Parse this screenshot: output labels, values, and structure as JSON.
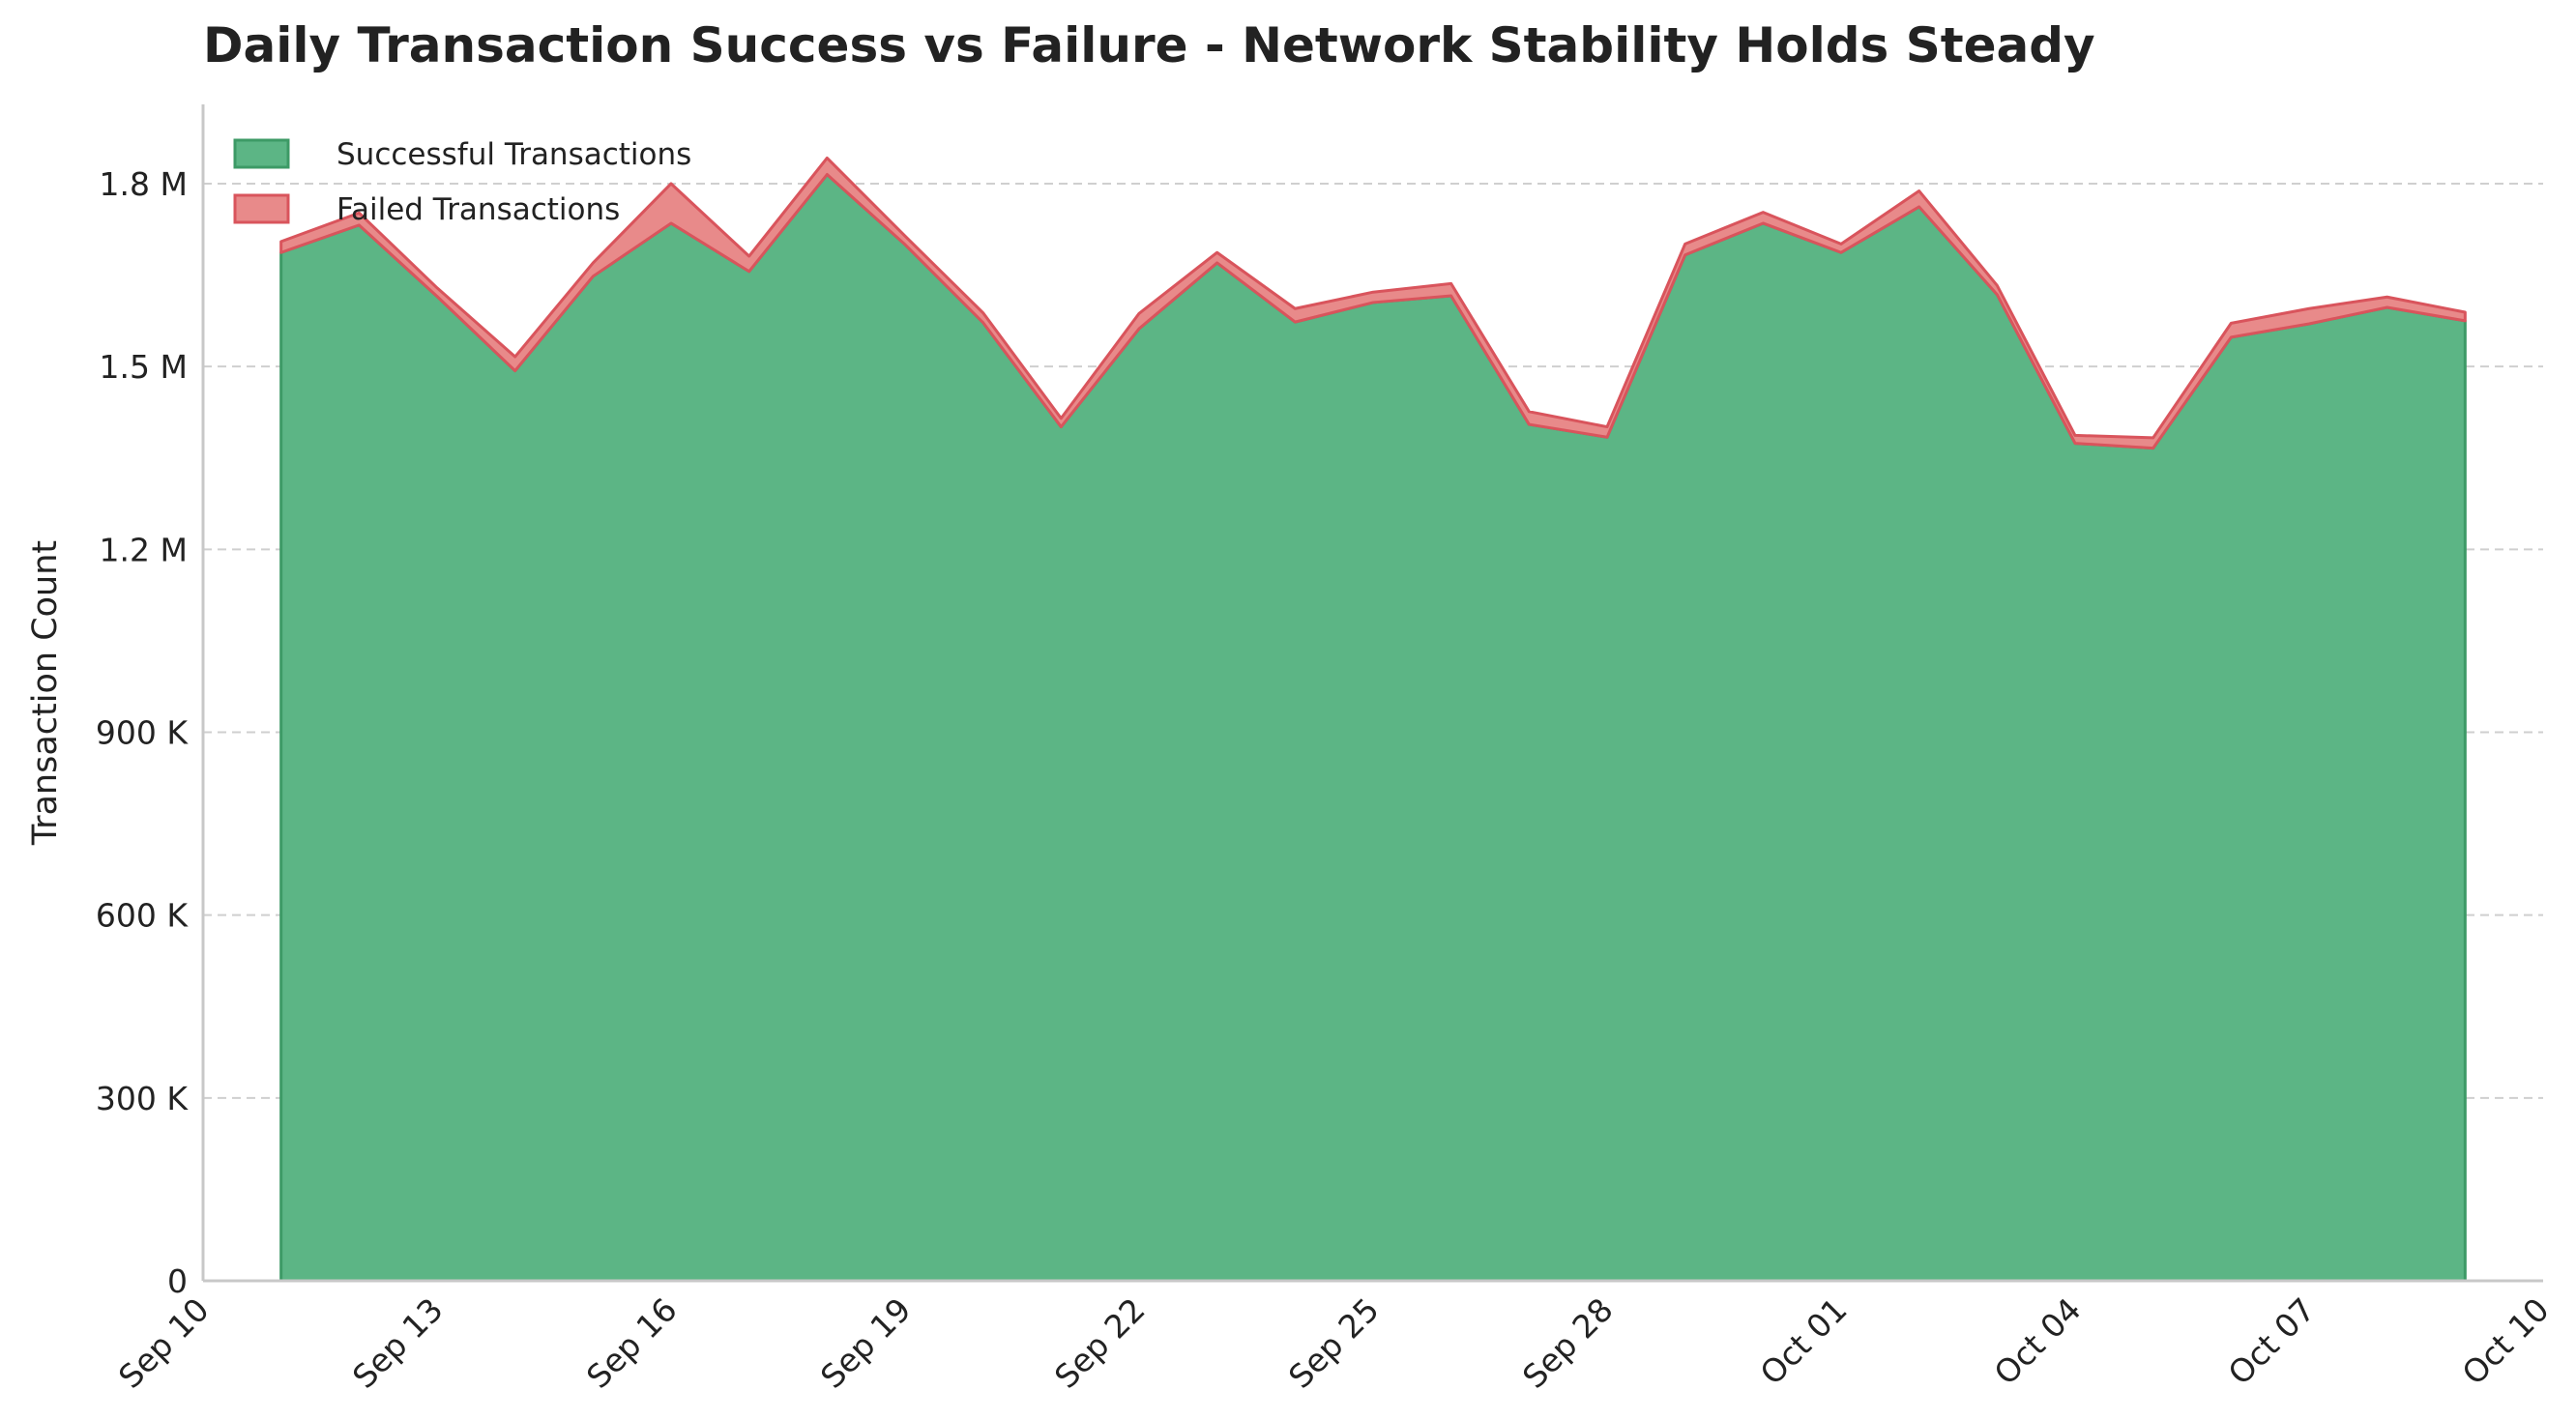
{
  "chart_data": {
    "type": "area",
    "stacked": true,
    "title": "Daily Transaction Success vs Failure - Network Stability Holds Steady",
    "xlabel": "",
    "ylabel": "Transaction Count",
    "x": [
      "2024-09-11",
      "2024-09-12",
      "2024-09-13",
      "2024-09-14",
      "2024-09-15",
      "2024-09-16",
      "2024-09-17",
      "2024-09-18",
      "2024-09-19",
      "2024-09-20",
      "2024-09-21",
      "2024-09-22",
      "2024-09-23",
      "2024-09-24",
      "2024-09-25",
      "2024-09-26",
      "2024-09-27",
      "2024-09-28",
      "2024-09-29",
      "2024-09-30",
      "2024-10-01",
      "2024-10-02",
      "2024-10-03",
      "2024-10-04",
      "2024-10-05",
      "2024-10-06",
      "2024-10-07",
      "2024-10-08",
      "2024-10-09"
    ],
    "series": [
      {
        "name": "Successful Transactions",
        "color": "#5cb585",
        "edge": "#3d9a66",
        "values": [
          1687000,
          1732000,
          1615000,
          1493000,
          1648000,
          1735000,
          1656000,
          1815000,
          1700000,
          1572000,
          1401000,
          1562000,
          1670000,
          1573000,
          1605000,
          1616000,
          1405000,
          1384000,
          1683000,
          1735000,
          1687000,
          1762000,
          1618000,
          1374000,
          1366000,
          1548000,
          1570000,
          1597000,
          1575000
        ]
      },
      {
        "name": "Failed Transactions",
        "color": "#e88a8a",
        "edge": "#d9545c",
        "values": [
          18000,
          20000,
          14000,
          23000,
          22000,
          65000,
          25000,
          27000,
          14000,
          16000,
          14000,
          25000,
          17000,
          22000,
          17000,
          20000,
          21000,
          17000,
          18000,
          18000,
          14000,
          26000,
          15000,
          13000,
          17000,
          23000,
          25000,
          17000,
          14000
        ]
      }
    ],
    "xlim": [
      "2024-09-10",
      "2024-10-10"
    ],
    "ylim": [
      0,
      1930000
    ],
    "x_ticks": [
      {
        "date": "2024-09-10",
        "label": "Sep 10"
      },
      {
        "date": "2024-09-13",
        "label": "Sep 13"
      },
      {
        "date": "2024-09-16",
        "label": "Sep 16"
      },
      {
        "date": "2024-09-19",
        "label": "Sep 19"
      },
      {
        "date": "2024-09-22",
        "label": "Sep 22"
      },
      {
        "date": "2024-09-25",
        "label": "Sep 25"
      },
      {
        "date": "2024-09-28",
        "label": "Sep 28"
      },
      {
        "date": "2024-10-01",
        "label": "Oct 01"
      },
      {
        "date": "2024-10-04",
        "label": "Oct 04"
      },
      {
        "date": "2024-10-07",
        "label": "Oct 07"
      },
      {
        "date": "2024-10-10",
        "label": "Oct 10"
      }
    ],
    "y_ticks": [
      {
        "value": 0,
        "label": "0"
      },
      {
        "value": 300000,
        "label": "300 K"
      },
      {
        "value": 600000,
        "label": "600 K"
      },
      {
        "value": 900000,
        "label": "900 K"
      },
      {
        "value": 1200000,
        "label": "1.2 M"
      },
      {
        "value": 1500000,
        "label": "1.5 M"
      },
      {
        "value": 1800000,
        "label": "1.8 M"
      }
    ],
    "grid": "y-dashed",
    "legend_position": "top-left",
    "axis_color": "#c8c8c8",
    "grid_color": "#cfcfcf"
  }
}
